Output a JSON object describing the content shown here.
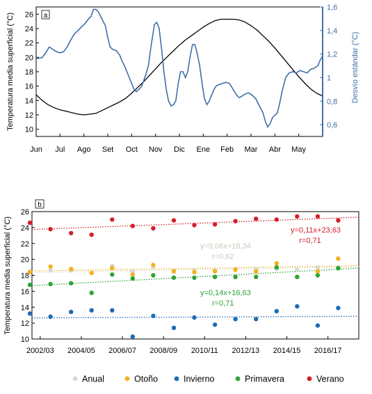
{
  "chart_data": [
    {
      "panel": "a",
      "type": "line",
      "ylabel": "Temperatura media superficial (°C)",
      "y2label": "Desvío estándar (°C)",
      "ylim": [
        9,
        27
      ],
      "yticks": [
        10,
        12,
        14,
        16,
        18,
        20,
        22,
        24,
        26
      ],
      "y2lim": [
        0.5,
        1.6
      ],
      "y2ticks": [
        "0,6",
        "0,8",
        "1",
        "1,2",
        "1,4",
        "1,6"
      ],
      "y2tick_values": [
        0.6,
        0.8,
        1.0,
        1.2,
        1.4,
        1.6
      ],
      "months": [
        "Jun",
        "Jul",
        "Ago",
        "Set",
        "Oct",
        "Nov",
        "Dic",
        "Ene",
        "Feb",
        "Mar",
        "Abr",
        "May"
      ],
      "xlim": [
        0,
        12
      ],
      "grid": false,
      "temp_color": "#000000",
      "sd_color": "#3f6fa8",
      "temperature": [
        [
          0,
          14.8
        ],
        [
          0.25,
          14.0
        ],
        [
          0.5,
          13.4
        ],
        [
          0.75,
          13.0
        ],
        [
          1.0,
          12.7
        ],
        [
          1.25,
          12.5
        ],
        [
          1.5,
          12.3
        ],
        [
          1.75,
          12.1
        ],
        [
          2.0,
          12.0
        ],
        [
          2.25,
          12.1
        ],
        [
          2.5,
          12.2
        ],
        [
          2.75,
          12.6
        ],
        [
          3.0,
          13.0
        ],
        [
          3.25,
          13.4
        ],
        [
          3.5,
          13.8
        ],
        [
          3.75,
          14.3
        ],
        [
          4.0,
          15.0
        ],
        [
          4.25,
          15.8
        ],
        [
          4.5,
          16.6
        ],
        [
          4.75,
          17.5
        ],
        [
          5.0,
          18.4
        ],
        [
          5.25,
          19.3
        ],
        [
          5.5,
          20.1
        ],
        [
          5.75,
          20.9
        ],
        [
          6.0,
          21.7
        ],
        [
          6.25,
          22.4
        ],
        [
          6.5,
          23.0
        ],
        [
          6.75,
          23.6
        ],
        [
          7.0,
          24.2
        ],
        [
          7.25,
          24.7
        ],
        [
          7.5,
          25.1
        ],
        [
          7.75,
          25.3
        ],
        [
          8.0,
          25.3
        ],
        [
          8.25,
          25.3
        ],
        [
          8.5,
          25.2
        ],
        [
          8.75,
          24.9
        ],
        [
          9.0,
          24.4
        ],
        [
          9.25,
          23.8
        ],
        [
          9.5,
          23.0
        ],
        [
          9.75,
          22.2
        ],
        [
          10.0,
          21.3
        ],
        [
          10.25,
          20.3
        ],
        [
          10.5,
          19.3
        ],
        [
          10.75,
          18.3
        ],
        [
          11.0,
          17.3
        ],
        [
          11.25,
          16.4
        ],
        [
          11.5,
          15.6
        ],
        [
          11.75,
          15.0
        ],
        [
          12.0,
          14.6
        ]
      ],
      "std_dev": [
        [
          0,
          1.16
        ],
        [
          0.25,
          1.17
        ],
        [
          0.4,
          1.21
        ],
        [
          0.55,
          1.26
        ],
        [
          0.7,
          1.24
        ],
        [
          0.85,
          1.22
        ],
        [
          1.0,
          1.21
        ],
        [
          1.15,
          1.22
        ],
        [
          1.3,
          1.26
        ],
        [
          1.45,
          1.32
        ],
        [
          1.6,
          1.37
        ],
        [
          1.75,
          1.4
        ],
        [
          1.9,
          1.43
        ],
        [
          2.05,
          1.46
        ],
        [
          2.2,
          1.5
        ],
        [
          2.3,
          1.52
        ],
        [
          2.4,
          1.58
        ],
        [
          2.5,
          1.58
        ],
        [
          2.6,
          1.56
        ],
        [
          2.75,
          1.5
        ],
        [
          2.9,
          1.44
        ],
        [
          3.0,
          1.34
        ],
        [
          3.1,
          1.26
        ],
        [
          3.2,
          1.24
        ],
        [
          3.35,
          1.23
        ],
        [
          3.5,
          1.19
        ],
        [
          3.6,
          1.14
        ],
        [
          3.7,
          1.1
        ],
        [
          3.8,
          1.05
        ],
        [
          3.9,
          1.0
        ],
        [
          4.0,
          0.95
        ],
        [
          4.1,
          0.9
        ],
        [
          4.2,
          0.88
        ],
        [
          4.3,
          0.9
        ],
        [
          4.4,
          0.92
        ],
        [
          4.5,
          0.97
        ],
        [
          4.6,
          1.03
        ],
        [
          4.7,
          1.1
        ],
        [
          4.8,
          1.25
        ],
        [
          4.95,
          1.45
        ],
        [
          5.05,
          1.47
        ],
        [
          5.15,
          1.42
        ],
        [
          5.25,
          1.25
        ],
        [
          5.35,
          1.05
        ],
        [
          5.45,
          0.9
        ],
        [
          5.55,
          0.8
        ],
        [
          5.65,
          0.76
        ],
        [
          5.75,
          0.77
        ],
        [
          5.85,
          0.8
        ],
        [
          5.95,
          0.95
        ],
        [
          6.05,
          1.05
        ],
        [
          6.15,
          1.05
        ],
        [
          6.25,
          1.0
        ],
        [
          6.35,
          1.05
        ],
        [
          6.45,
          1.18
        ],
        [
          6.55,
          1.28
        ],
        [
          6.65,
          1.28
        ],
        [
          6.75,
          1.2
        ],
        [
          6.85,
          1.1
        ],
        [
          6.95,
          0.95
        ],
        [
          7.05,
          0.82
        ],
        [
          7.15,
          0.77
        ],
        [
          7.25,
          0.8
        ],
        [
          7.35,
          0.85
        ],
        [
          7.45,
          0.9
        ],
        [
          7.55,
          0.93
        ],
        [
          7.65,
          0.94
        ],
        [
          7.8,
          0.95
        ],
        [
          7.95,
          0.96
        ],
        [
          8.1,
          0.95
        ],
        [
          8.25,
          0.9
        ],
        [
          8.4,
          0.85
        ],
        [
          8.5,
          0.83
        ],
        [
          8.6,
          0.84
        ],
        [
          8.75,
          0.86
        ],
        [
          8.9,
          0.87
        ],
        [
          9.05,
          0.85
        ],
        [
          9.2,
          0.82
        ],
        [
          9.35,
          0.76
        ],
        [
          9.5,
          0.7
        ],
        [
          9.6,
          0.63
        ],
        [
          9.7,
          0.58
        ],
        [
          9.8,
          0.61
        ],
        [
          9.9,
          0.66
        ],
        [
          10.0,
          0.68
        ],
        [
          10.1,
          0.7
        ],
        [
          10.2,
          0.78
        ],
        [
          10.3,
          0.88
        ],
        [
          10.45,
          1.0
        ],
        [
          10.6,
          1.04
        ],
        [
          10.75,
          1.05
        ],
        [
          10.9,
          1.04
        ],
        [
          11.05,
          1.06
        ],
        [
          11.2,
          1.05
        ],
        [
          11.35,
          1.04
        ],
        [
          11.5,
          1.07
        ],
        [
          11.65,
          1.08
        ],
        [
          11.8,
          1.1
        ],
        [
          11.9,
          1.15
        ],
        [
          12.0,
          1.18
        ]
      ]
    },
    {
      "panel": "b",
      "type": "scatter",
      "ylabel": "Temperatura media superficial (°C)",
      "ylim": [
        10,
        26
      ],
      "yticks": [
        10,
        12,
        14,
        16,
        18,
        20,
        22,
        24,
        26
      ],
      "xlim": [
        2002.1,
        2018.0
      ],
      "xtick_values": [
        2002.5,
        2004.5,
        2006.5,
        2008.5,
        2010.5,
        2012.5,
        2014.5,
        2016.5
      ],
      "xtick_labels": [
        "2002/03",
        "2004/05",
        "2006/07",
        "2008/09",
        "2010/11",
        "2012/13",
        "2014/15",
        "2016/17"
      ],
      "grid": false,
      "legend_placement": "bottom",
      "series": [
        {
          "name": "Anual",
          "color": "#d9d9cf",
          "x": [
            2002,
            2003,
            2004,
            2005,
            2006,
            2007,
            2008,
            2009,
            2010,
            2011,
            2012,
            2013,
            2014,
            2015,
            2016,
            2017
          ],
          "y": [
            18.5,
            18.6,
            18.6,
            18.3,
            19.2,
            18.5,
            19.0,
            18.6,
            18.6,
            18.6,
            18.8,
            18.8,
            18.8,
            18.7,
            19.0,
            19.0
          ]
        },
        {
          "name": "Otoño",
          "color": "#f2b21b",
          "x": [
            2002,
            2003,
            2004,
            2005,
            2006,
            2007,
            2008,
            2009,
            2010,
            2011,
            2012,
            2013,
            2014,
            2015,
            2016,
            2017
          ],
          "y": [
            18.4,
            19.1,
            18.8,
            18.3,
            18.9,
            18.1,
            19.3,
            18.5,
            18.4,
            18.5,
            18.7,
            18.5,
            19.5,
            17.8,
            18.5,
            20.1
          ]
        },
        {
          "name": "Invierno",
          "color": "#1f6bb5",
          "x": [
            2002,
            2003,
            2004,
            2005,
            2006,
            2007,
            2008,
            2009,
            2010,
            2011,
            2012,
            2013,
            2014,
            2015,
            2016,
            2017
          ],
          "y": [
            13.2,
            12.8,
            13.4,
            13.6,
            13.6,
            10.3,
            12.9,
            11.4,
            12.7,
            11.8,
            12.5,
            12.5,
            13.5,
            14.1,
            11.7,
            13.9
          ]
        },
        {
          "name": "Primavera",
          "color": "#2ea337",
          "x": [
            2002,
            2003,
            2004,
            2005,
            2006,
            2007,
            2008,
            2009,
            2010,
            2011,
            2012,
            2013,
            2014,
            2015,
            2016,
            2017
          ],
          "y": [
            16.8,
            16.9,
            17.0,
            15.8,
            18.1,
            17.6,
            18.0,
            17.7,
            17.7,
            17.8,
            17.8,
            17.8,
            19.0,
            17.8,
            18.0,
            18.9
          ]
        },
        {
          "name": "Verano",
          "color": "#d4202a",
          "x": [
            2002,
            2003,
            2004,
            2005,
            2006,
            2007,
            2008,
            2009,
            2010,
            2011,
            2012,
            2013,
            2014,
            2015,
            2016,
            2017
          ],
          "y": [
            24.6,
            23.8,
            23.3,
            23.1,
            25.0,
            24.2,
            23.9,
            24.9,
            24.3,
            24.4,
            24.8,
            25.1,
            25.0,
            25.4,
            25.4,
            24.9
          ]
        }
      ],
      "trendlines": [
        {
          "series": "Verano",
          "from": [
            2002.1,
            23.75
          ],
          "to": [
            2018.0,
            25.3
          ],
          "color": "#d4202a"
        },
        {
          "series": "Anual",
          "from": [
            2002.1,
            18.35
          ],
          "to": [
            2018.0,
            19.05
          ],
          "color": "#d9d9cf"
        },
        {
          "series": "Otoño",
          "from": [
            2002.1,
            18.55
          ],
          "to": [
            2018.0,
            19.2
          ],
          "color": "#f2b21b"
        },
        {
          "series": "Primavera",
          "from": [
            2002.1,
            16.7
          ],
          "to": [
            2018.0,
            18.9
          ],
          "color": "#2ea337"
        },
        {
          "series": "Invierno",
          "from": [
            2002.1,
            12.65
          ],
          "to": [
            2018.0,
            12.85
          ],
          "color": "#1f6bb5"
        }
      ],
      "annotations": [
        {
          "series": "Verano",
          "lines": [
            "y=0,11x+23,63",
            "r=0,71"
          ],
          "color": "#d4202a"
        },
        {
          "series": "Anual",
          "lines": [
            "y=0,06x+18,34",
            "r=0,62"
          ],
          "color": "#d9d9cf"
        },
        {
          "series": "Primavera",
          "lines": [
            "y=0,14x+16,63",
            "r=0,71"
          ],
          "color": "#2ea337"
        }
      ]
    }
  ]
}
